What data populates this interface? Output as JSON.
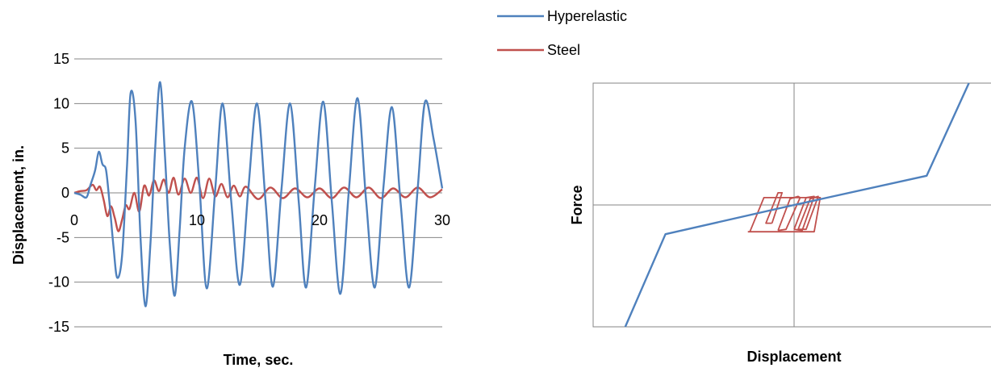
{
  "legend": {
    "placement": "top-center",
    "entries": [
      {
        "label": "Hyperelastic",
        "color": "#4f81bd"
      },
      {
        "label": "Steel",
        "color": "#c0504d"
      }
    ]
  },
  "chart_data": [
    {
      "type": "line",
      "title": "",
      "xlabel": "Time, sec.",
      "ylabel": "Displacement, in.",
      "xlim": [
        0,
        30
      ],
      "ylim": [
        -15,
        15
      ],
      "x_ticks": [
        "0",
        "10",
        "20",
        "30"
      ],
      "y_ticks": [
        "15",
        "10",
        "5",
        "0",
        "-5",
        "-10",
        "-15"
      ],
      "grid": "horizontal",
      "series": [
        {
          "name": "Hyperelastic",
          "color": "#4f81bd",
          "x": [
            0,
            0.5,
            1.0,
            1.3,
            1.7,
            2.0,
            2.3,
            2.6,
            2.9,
            3.2,
            3.5,
            3.9,
            4.3,
            4.6,
            5.0,
            5.4,
            5.8,
            6.2,
            6.6,
            7.0,
            7.4,
            7.8,
            8.2,
            8.6,
            9.0,
            9.6,
            10.2,
            10.8,
            11.5,
            12.1,
            12.8,
            13.5,
            14.2,
            14.9,
            15.6,
            16.2,
            16.9,
            17.6,
            18.3,
            18.9,
            19.6,
            20.3,
            21.0,
            21.7,
            22.4,
            23.1,
            23.8,
            24.5,
            25.2,
            25.9,
            26.6,
            27.3,
            28.0,
            28.6,
            29.3,
            30.0
          ],
          "y": [
            0,
            -0.2,
            -0.5,
            0.8,
            2.5,
            4.6,
            3.2,
            2.5,
            -1.5,
            -6.0,
            -9.5,
            -7.0,
            3.0,
            11.2,
            8.0,
            -5.0,
            -12.7,
            -6.0,
            5.0,
            12.4,
            4.0,
            -6.0,
            -11.5,
            -4.0,
            5.0,
            10.2,
            1.0,
            -10.7,
            0.5,
            10.0,
            -1.0,
            -10.3,
            0.5,
            10.0,
            -1.0,
            -10.5,
            0.5,
            10.0,
            -1.0,
            -10.6,
            0.5,
            10.2,
            -1.0,
            -11.3,
            0.5,
            10.6,
            -1.0,
            -10.6,
            0.5,
            9.6,
            -1.0,
            -10.6,
            0.5,
            10.2,
            6.0,
            0.5
          ]
        },
        {
          "name": "Steel",
          "color": "#c0504d",
          "x": [
            0,
            0.5,
            1.0,
            1.5,
            1.8,
            2.1,
            2.4,
            2.7,
            3.0,
            3.3,
            3.6,
            3.9,
            4.2,
            4.5,
            4.9,
            5.3,
            5.7,
            6.1,
            6.5,
            6.9,
            7.3,
            7.7,
            8.1,
            8.5,
            9.0,
            9.5,
            10.0,
            10.5,
            11.0,
            11.5,
            12.0,
            12.5,
            13.0,
            13.5,
            14.0,
            15.0,
            16.0,
            17.0,
            18.0,
            19.0,
            20.0,
            21.0,
            22.0,
            23.0,
            24.0,
            25.0,
            26.0,
            27.0,
            28.0,
            29.0,
            30.0
          ],
          "y": [
            0,
            0.2,
            0.3,
            0.9,
            0.3,
            0.7,
            -0.8,
            -2.6,
            -1.5,
            -2.8,
            -4.3,
            -3.0,
            -1.4,
            -1.8,
            0.0,
            -2.1,
            0.8,
            -0.3,
            1.4,
            0.2,
            1.5,
            0.0,
            1.7,
            -0.2,
            1.6,
            0.0,
            1.7,
            -0.6,
            1.6,
            -0.4,
            1.0,
            -0.5,
            0.8,
            -0.4,
            0.7,
            -0.7,
            0.6,
            -0.6,
            0.5,
            -0.5,
            0.5,
            -0.6,
            0.6,
            -0.5,
            0.6,
            -0.6,
            0.5,
            -0.5,
            0.6,
            -0.5,
            0.4
          ]
        }
      ]
    },
    {
      "type": "line",
      "title": "",
      "xlabel": "Displacement",
      "ylabel": "Force",
      "xlim": [
        -1,
        1
      ],
      "ylim": [
        -1,
        1
      ],
      "x_ticks": [],
      "y_ticks": [],
      "grid": "center-axes",
      "series": [
        {
          "name": "Hyperelastic",
          "color": "#4f81bd",
          "x": [
            -0.84,
            -0.64,
            0.0,
            0.66,
            0.87
          ],
          "y": [
            -1.0,
            -0.24,
            0.0,
            0.24,
            1.0
          ]
        },
        {
          "name": "Steel",
          "color": "#c0504d",
          "loops": [
            {
              "x": [
                -0.22,
                -0.15,
                0.0,
                0.13,
                0.1,
                0.0,
                -0.23
              ],
              "y": [
                -0.22,
                0.06,
                0.06,
                0.06,
                -0.22,
                -0.22,
                -0.22
              ]
            },
            {
              "x": [
                -0.08,
                -0.02,
                0.02,
                0.03,
                -0.04,
                -0.08
              ],
              "y": [
                -0.21,
                0.05,
                0.07,
                0.06,
                -0.2,
                -0.21
              ]
            },
            {
              "x": [
                0.0,
                0.06,
                0.1,
                0.04,
                0.0
              ],
              "y": [
                -0.2,
                0.06,
                0.07,
                -0.21,
                -0.2
              ]
            },
            {
              "x": [
                0.02,
                0.08,
                0.12,
                0.06,
                0.02
              ],
              "y": [
                -0.2,
                0.05,
                0.07,
                -0.2,
                -0.2
              ]
            },
            {
              "x": [
                -0.11,
                -0.06,
                -0.08,
                -0.14,
                -0.11
              ],
              "y": [
                -0.15,
                0.1,
                0.1,
                -0.15,
                -0.15
              ]
            }
          ]
        }
      ]
    }
  ]
}
